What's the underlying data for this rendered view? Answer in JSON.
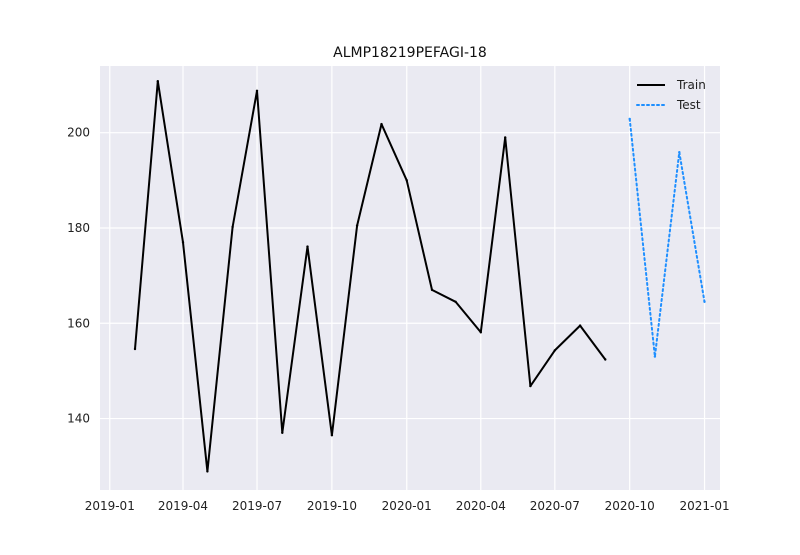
{
  "chart_data": {
    "type": "line",
    "title": "ALMP18219PEFAGI-18",
    "xlabel": "",
    "ylabel": "",
    "x_ticks": [
      "2019-01",
      "2019-04",
      "2019-07",
      "2019-10",
      "2020-01",
      "2020-04",
      "2020-07",
      "2020-10",
      "2021-01"
    ],
    "y_ticks": [
      140,
      160,
      180,
      200
    ],
    "xlim": [
      "2018-12-20",
      "2021-01-20"
    ],
    "ylim": [
      125,
      214
    ],
    "grid": true,
    "legend_position": "top-right",
    "series": [
      {
        "name": "Train",
        "color": "#000000",
        "style": "solid",
        "x": [
          "2019-02-01",
          "2019-03-01",
          "2019-04-01",
          "2019-05-01",
          "2019-06-01",
          "2019-07-01",
          "2019-08-01",
          "2019-09-01",
          "2019-10-01",
          "2019-11-01",
          "2019-12-01",
          "2020-01-01",
          "2020-02-01",
          "2020-03-01",
          "2020-04-01",
          "2020-05-01",
          "2020-06-01",
          "2020-07-01",
          "2020-08-01",
          "2020-09-01"
        ],
        "values": [
          154.6,
          210.8,
          177.0,
          128.9,
          180.2,
          208.8,
          137.0,
          176.1,
          136.5,
          180.5,
          201.8,
          190.0,
          167.0,
          164.5,
          158.1,
          199.0,
          146.8,
          154.3,
          159.5,
          152.4
        ]
      },
      {
        "name": "Test",
        "color": "#1f8fff",
        "style": "dotted",
        "x": [
          "2020-10-01",
          "2020-11-01",
          "2020-12-01",
          "2021-01-01"
        ],
        "values": [
          202.9,
          153.0,
          195.9,
          164.5
        ]
      }
    ]
  }
}
